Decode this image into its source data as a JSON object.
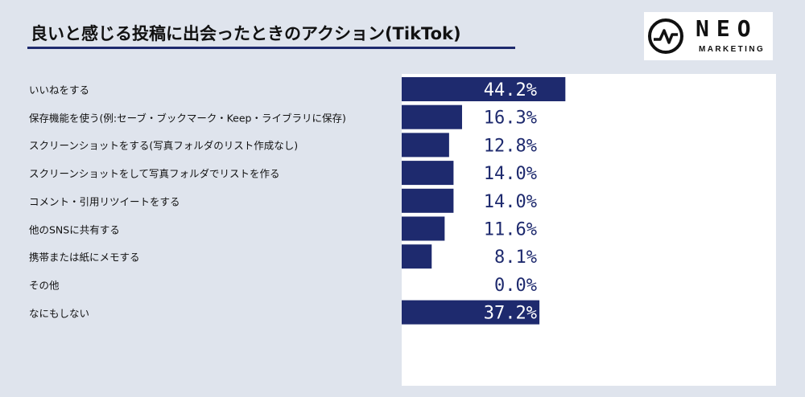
{
  "title": "良いと感じる投稿に出会ったときのアクション(TikTok)",
  "logo": {
    "name": "NEO",
    "sub": "MARKETING",
    "icon": "pulse-circle-icon"
  },
  "colors": {
    "bar": "#1e2a6e",
    "bar_label_inside": "#ffffff",
    "bar_label_outside": "#1e2a6e"
  },
  "chart_data": {
    "type": "bar",
    "orientation": "horizontal",
    "title": "良いと感じる投稿に出会ったときのアクション(TikTok)",
    "xlabel": "",
    "ylabel": "",
    "categories": [
      "いいねをする",
      "保存機能を使う(例:セーブ・ブックマーク・Keep・ライブラリに保存)",
      "スクリーンショットをする(写真フォルダのリスト作成なし)",
      "スクリーンショットをして写真フォルダでリストを作る",
      "コメント・引用リツイートをする",
      "他のSNSに共有する",
      "携帯または紙にメモする",
      "その他",
      "なにもしない"
    ],
    "values": [
      44.2,
      16.3,
      12.8,
      14.0,
      14.0,
      11.6,
      8.1,
      0.0,
      37.2
    ],
    "value_labels": [
      "44.2%",
      "16.3%",
      "12.8%",
      "14.0%",
      "14.0%",
      "11.6%",
      "8.1%",
      "0.0%",
      "37.2%"
    ],
    "xlim": [
      0,
      100
    ],
    "grid": false,
    "legend": "none"
  }
}
